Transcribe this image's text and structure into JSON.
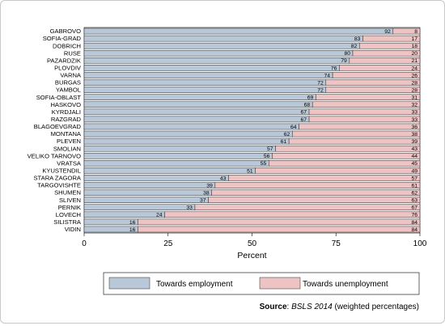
{
  "chart_data": {
    "type": "bar",
    "orientation": "horizontal",
    "stacked": true,
    "categories": [
      "GABROVO",
      "SOFIA-GRAD",
      "DOBRICH",
      "RUSE",
      "PAZARDZIK",
      "PLOVDIV",
      "VARNA",
      "BURGAS",
      "YAMBOL",
      "SOFIA-OBLAST",
      "HASKOVO",
      "KYRDJALI",
      "RAZGRAD",
      "BLAGOEVGRAD",
      "MONTANA",
      "PLEVEN",
      "SMOLIAN",
      "VELIKO TARNOVO",
      "VRATSA",
      "KYUSTENDIL",
      "STARA ZAGORA",
      "TARGOVISHTE",
      "SHUMEN",
      "SLIVEN",
      "PERNIK",
      "LOVECH",
      "SILISTRA",
      "VIDIN"
    ],
    "series": [
      {
        "name": "Towards employment",
        "color": "#b9c8d8",
        "values": [
          92,
          83,
          82,
          80,
          79,
          76,
          74,
          72,
          72,
          69,
          68,
          67,
          67,
          64,
          62,
          61,
          57,
          56,
          55,
          51,
          43,
          39,
          38,
          37,
          33,
          24,
          16,
          16
        ]
      },
      {
        "name": "Towards unemployment",
        "color": "#eec3c3",
        "values": [
          8,
          17,
          18,
          20,
          21,
          24,
          26,
          28,
          28,
          31,
          32,
          33,
          33,
          36,
          38,
          39,
          43,
          44,
          45,
          49,
          57,
          61,
          62,
          63,
          67,
          76,
          84,
          84
        ]
      }
    ],
    "xlabel": "Percent",
    "xlim": [
      0,
      100
    ],
    "xticks": [
      0,
      25,
      50,
      75,
      100
    ],
    "grid": false,
    "legend_position": "bottom"
  },
  "source": {
    "label": "Source",
    "text": ": BSLS 2014 (weighted percentages)",
    "italic_part": "BSLS 2014",
    "rest": " (weighted percentages)"
  }
}
